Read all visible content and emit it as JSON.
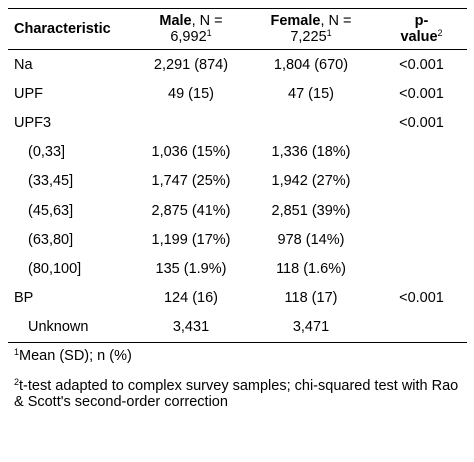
{
  "header": {
    "characteristic": "Characteristic",
    "male_bold": "Male",
    "male_rest": ", N =",
    "male_n": "6,992",
    "female_bold": "Female",
    "female_rest": ", N =",
    "female_n": "7,225",
    "p_line1": "p-",
    "p_line2": "value",
    "sup1": "1",
    "sup2": "2"
  },
  "rows": [
    {
      "label": "Na",
      "male": "2,291 (874)",
      "female": "1,804 (670)",
      "p": "<0.001"
    },
    {
      "label": "UPF",
      "male": "49 (15)",
      "female": "47 (15)",
      "p": "<0.001"
    },
    {
      "label": "UPF3",
      "male": "",
      "female": "",
      "p": "<0.001"
    },
    {
      "label": "(0,33]",
      "male": "1,036 (15%)",
      "female": "1,336 (18%)",
      "p": ""
    },
    {
      "label": "(33,45]",
      "male": "1,747 (25%)",
      "female": "1,942 (27%)",
      "p": ""
    },
    {
      "label": "(45,63]",
      "male": "2,875 (41%)",
      "female": "2,851 (39%)",
      "p": ""
    },
    {
      "label": "(63,80]",
      "male": "1,199 (17%)",
      "female": "978 (14%)",
      "p": ""
    },
    {
      "label": "(80,100]",
      "male": "135 (1.9%)",
      "female": "118 (1.6%)",
      "p": ""
    },
    {
      "label": "BP",
      "male": "124 (16)",
      "female": "118 (17)",
      "p": "<0.001"
    },
    {
      "label": "Unknown",
      "male": "3,431",
      "female": "3,471",
      "p": ""
    }
  ],
  "footnotes": {
    "n1_sup": "1",
    "n1": "Mean (SD); n (%)",
    "n2_sup": "2",
    "n2": "t-test adapted to complex survey samples; chi-squared test with Rao & Scott's second-order correction"
  }
}
